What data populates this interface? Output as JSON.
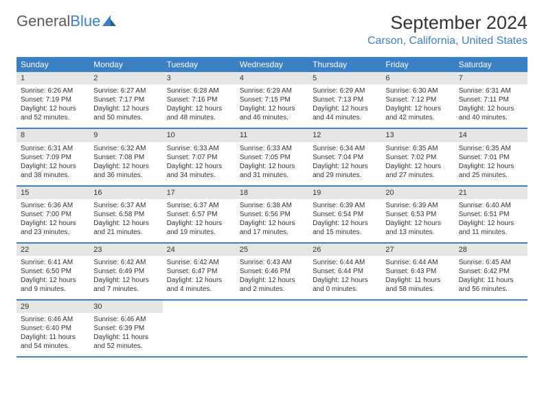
{
  "logo": {
    "text1": "General",
    "text2": "Blue"
  },
  "title": "September 2024",
  "location": "Carson, California, United States",
  "colors": {
    "accent": "#3b7fc4",
    "header_bg": "#3b7fc4",
    "header_text": "#ffffff",
    "daynum_bg": "#e6e6e6",
    "text": "#333333",
    "logo_gray": "#5a5a5a"
  },
  "weekdays": [
    "Sunday",
    "Monday",
    "Tuesday",
    "Wednesday",
    "Thursday",
    "Friday",
    "Saturday"
  ],
  "weeks": [
    [
      {
        "n": "1",
        "sr": "Sunrise: 6:26 AM",
        "ss": "Sunset: 7:19 PM",
        "dl": "Daylight: 12 hours and 52 minutes."
      },
      {
        "n": "2",
        "sr": "Sunrise: 6:27 AM",
        "ss": "Sunset: 7:17 PM",
        "dl": "Daylight: 12 hours and 50 minutes."
      },
      {
        "n": "3",
        "sr": "Sunrise: 6:28 AM",
        "ss": "Sunset: 7:16 PM",
        "dl": "Daylight: 12 hours and 48 minutes."
      },
      {
        "n": "4",
        "sr": "Sunrise: 6:29 AM",
        "ss": "Sunset: 7:15 PM",
        "dl": "Daylight: 12 hours and 46 minutes."
      },
      {
        "n": "5",
        "sr": "Sunrise: 6:29 AM",
        "ss": "Sunset: 7:13 PM",
        "dl": "Daylight: 12 hours and 44 minutes."
      },
      {
        "n": "6",
        "sr": "Sunrise: 6:30 AM",
        "ss": "Sunset: 7:12 PM",
        "dl": "Daylight: 12 hours and 42 minutes."
      },
      {
        "n": "7",
        "sr": "Sunrise: 6:31 AM",
        "ss": "Sunset: 7:11 PM",
        "dl": "Daylight: 12 hours and 40 minutes."
      }
    ],
    [
      {
        "n": "8",
        "sr": "Sunrise: 6:31 AM",
        "ss": "Sunset: 7:09 PM",
        "dl": "Daylight: 12 hours and 38 minutes."
      },
      {
        "n": "9",
        "sr": "Sunrise: 6:32 AM",
        "ss": "Sunset: 7:08 PM",
        "dl": "Daylight: 12 hours and 36 minutes."
      },
      {
        "n": "10",
        "sr": "Sunrise: 6:33 AM",
        "ss": "Sunset: 7:07 PM",
        "dl": "Daylight: 12 hours and 34 minutes."
      },
      {
        "n": "11",
        "sr": "Sunrise: 6:33 AM",
        "ss": "Sunset: 7:05 PM",
        "dl": "Daylight: 12 hours and 31 minutes."
      },
      {
        "n": "12",
        "sr": "Sunrise: 6:34 AM",
        "ss": "Sunset: 7:04 PM",
        "dl": "Daylight: 12 hours and 29 minutes."
      },
      {
        "n": "13",
        "sr": "Sunrise: 6:35 AM",
        "ss": "Sunset: 7:02 PM",
        "dl": "Daylight: 12 hours and 27 minutes."
      },
      {
        "n": "14",
        "sr": "Sunrise: 6:35 AM",
        "ss": "Sunset: 7:01 PM",
        "dl": "Daylight: 12 hours and 25 minutes."
      }
    ],
    [
      {
        "n": "15",
        "sr": "Sunrise: 6:36 AM",
        "ss": "Sunset: 7:00 PM",
        "dl": "Daylight: 12 hours and 23 minutes."
      },
      {
        "n": "16",
        "sr": "Sunrise: 6:37 AM",
        "ss": "Sunset: 6:58 PM",
        "dl": "Daylight: 12 hours and 21 minutes."
      },
      {
        "n": "17",
        "sr": "Sunrise: 6:37 AM",
        "ss": "Sunset: 6:57 PM",
        "dl": "Daylight: 12 hours and 19 minutes."
      },
      {
        "n": "18",
        "sr": "Sunrise: 6:38 AM",
        "ss": "Sunset: 6:56 PM",
        "dl": "Daylight: 12 hours and 17 minutes."
      },
      {
        "n": "19",
        "sr": "Sunrise: 6:39 AM",
        "ss": "Sunset: 6:54 PM",
        "dl": "Daylight: 12 hours and 15 minutes."
      },
      {
        "n": "20",
        "sr": "Sunrise: 6:39 AM",
        "ss": "Sunset: 6:53 PM",
        "dl": "Daylight: 12 hours and 13 minutes."
      },
      {
        "n": "21",
        "sr": "Sunrise: 6:40 AM",
        "ss": "Sunset: 6:51 PM",
        "dl": "Daylight: 12 hours and 11 minutes."
      }
    ],
    [
      {
        "n": "22",
        "sr": "Sunrise: 6:41 AM",
        "ss": "Sunset: 6:50 PM",
        "dl": "Daylight: 12 hours and 9 minutes."
      },
      {
        "n": "23",
        "sr": "Sunrise: 6:42 AM",
        "ss": "Sunset: 6:49 PM",
        "dl": "Daylight: 12 hours and 7 minutes."
      },
      {
        "n": "24",
        "sr": "Sunrise: 6:42 AM",
        "ss": "Sunset: 6:47 PM",
        "dl": "Daylight: 12 hours and 4 minutes."
      },
      {
        "n": "25",
        "sr": "Sunrise: 6:43 AM",
        "ss": "Sunset: 6:46 PM",
        "dl": "Daylight: 12 hours and 2 minutes."
      },
      {
        "n": "26",
        "sr": "Sunrise: 6:44 AM",
        "ss": "Sunset: 6:44 PM",
        "dl": "Daylight: 12 hours and 0 minutes."
      },
      {
        "n": "27",
        "sr": "Sunrise: 6:44 AM",
        "ss": "Sunset: 6:43 PM",
        "dl": "Daylight: 11 hours and 58 minutes."
      },
      {
        "n": "28",
        "sr": "Sunrise: 6:45 AM",
        "ss": "Sunset: 6:42 PM",
        "dl": "Daylight: 11 hours and 56 minutes."
      }
    ],
    [
      {
        "n": "29",
        "sr": "Sunrise: 6:46 AM",
        "ss": "Sunset: 6:40 PM",
        "dl": "Daylight: 11 hours and 54 minutes."
      },
      {
        "n": "30",
        "sr": "Sunrise: 6:46 AM",
        "ss": "Sunset: 6:39 PM",
        "dl": "Daylight: 11 hours and 52 minutes."
      },
      null,
      null,
      null,
      null,
      null
    ]
  ]
}
